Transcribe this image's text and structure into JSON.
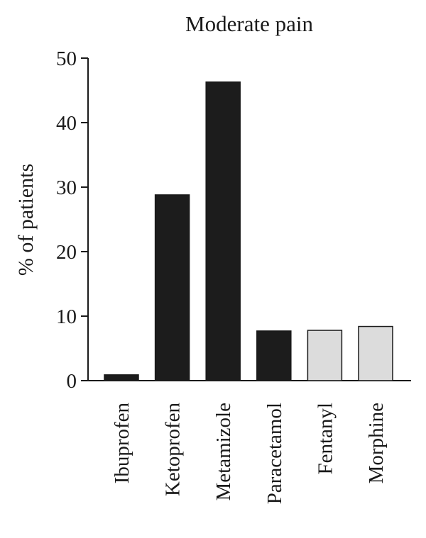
{
  "chart_data": {
    "type": "bar",
    "title": "Moderate pain",
    "xlabel": "",
    "ylabel": "% of patients",
    "ylim": [
      0,
      50
    ],
    "yticks": [
      0,
      10,
      20,
      30,
      40,
      50
    ],
    "grid": false,
    "legend": "none",
    "categories": [
      "Ibuprofen",
      "Ketoprofen",
      "Metamizole",
      "Paracetamol",
      "Fentanyl",
      "Morphine"
    ],
    "values": [
      0.9,
      28.8,
      46.3,
      7.7,
      7.8,
      8.4
    ],
    "bar_colors": [
      "#1c1c1c",
      "#1c1c1c",
      "#1c1c1c",
      "#1c1c1c",
      "#dcdcdc",
      "#dcdcdc"
    ]
  }
}
